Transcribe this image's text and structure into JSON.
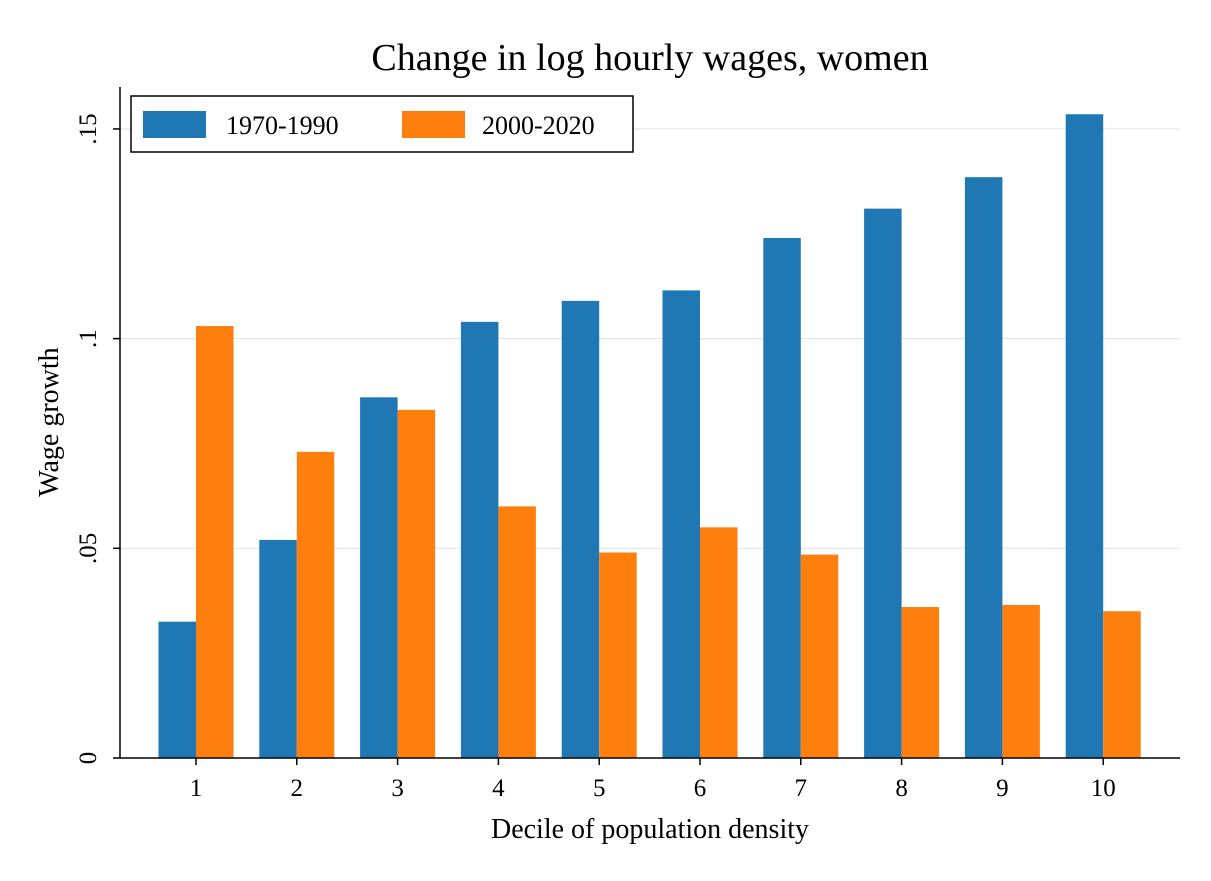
{
  "chart_data": {
    "type": "bar",
    "title": "Change in log hourly wages, women",
    "xlabel": "Decile of population density",
    "ylabel": "Wage growth",
    "categories": [
      "1",
      "2",
      "3",
      "4",
      "5",
      "6",
      "7",
      "8",
      "9",
      "10"
    ],
    "series": [
      {
        "name": "1970-1990",
        "color": "#1f77b4",
        "values": [
          0.0325,
          0.052,
          0.086,
          0.104,
          0.109,
          0.1115,
          0.124,
          0.131,
          0.1385,
          0.1535
        ]
      },
      {
        "name": "2000-2020",
        "color": "#ff7f0e",
        "values": [
          0.103,
          0.073,
          0.083,
          0.06,
          0.049,
          0.055,
          0.0485,
          0.036,
          0.0365,
          0.035
        ]
      }
    ],
    "ylim": [
      0,
      0.16
    ],
    "yticks": [
      0,
      0.05,
      0.1,
      0.15
    ],
    "ytick_labels": [
      "0",
      ".05",
      ".1",
      ".15"
    ],
    "grid": true,
    "legend_position": "top-left"
  }
}
